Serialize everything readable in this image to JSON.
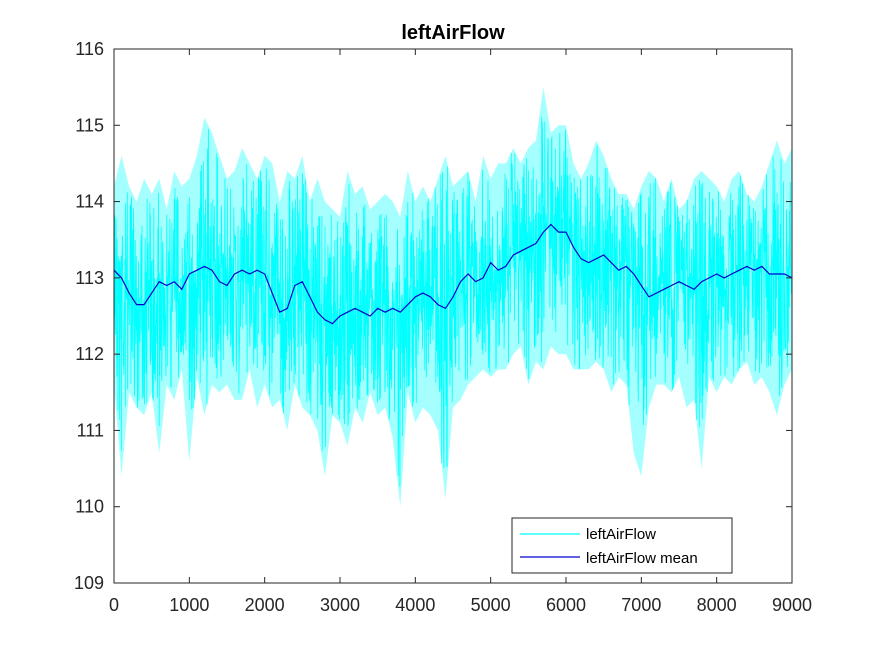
{
  "chart_data": {
    "type": "line",
    "title": "leftAirFlow",
    "xlabel": "",
    "ylabel": "",
    "xlim": [
      0,
      9000
    ],
    "ylim": [
      109,
      116
    ],
    "x_ticks": [
      0,
      1000,
      2000,
      3000,
      4000,
      5000,
      6000,
      7000,
      8000,
      9000
    ],
    "x_tick_labels": [
      "0",
      "1000",
      "2000",
      "3000",
      "4000",
      "5000",
      "6000",
      "7000",
      "8000",
      "9000"
    ],
    "y_ticks": [
      109,
      110,
      111,
      112,
      113,
      114,
      115,
      116
    ],
    "y_tick_labels": [
      "109",
      "110",
      "111",
      "112",
      "113",
      "114",
      "115",
      "116"
    ],
    "grid": false,
    "legend_position": "bottom-right",
    "series": [
      {
        "name": "leftAirFlow",
        "color": "#00FFFF",
        "x": [
          0,
          100,
          200,
          300,
          400,
          500,
          600,
          700,
          800,
          900,
          1000,
          1100,
          1200,
          1300,
          1400,
          1500,
          1600,
          1700,
          1800,
          1900,
          2000,
          2100,
          2200,
          2300,
          2400,
          2500,
          2600,
          2700,
          2800,
          2900,
          3000,
          3100,
          3200,
          3300,
          3400,
          3500,
          3600,
          3700,
          3800,
          3900,
          4000,
          4100,
          4200,
          4300,
          4400,
          4500,
          4600,
          4700,
          4800,
          4900,
          5000,
          5100,
          5200,
          5300,
          5400,
          5500,
          5600,
          5700,
          5800,
          5900,
          6000,
          6100,
          6200,
          6300,
          6400,
          6500,
          6600,
          6700,
          6800,
          6900,
          7000,
          7100,
          7200,
          7300,
          7400,
          7500,
          7600,
          7700,
          7800,
          7900,
          8000,
          8100,
          8200,
          8300,
          8400,
          8500,
          8600,
          8700,
          8800,
          8900,
          9000
        ],
        "y_min": [
          111.6,
          110.4,
          111.5,
          111.3,
          111.2,
          111.5,
          110.7,
          111.6,
          111.4,
          111.8,
          110.6,
          111.7,
          111.2,
          111.6,
          111.5,
          111.6,
          111.4,
          111.4,
          111.8,
          111.3,
          111.6,
          111.3,
          111.4,
          111.0,
          111.6,
          111.3,
          111.2,
          111.0,
          110.4,
          111.2,
          111.1,
          110.8,
          111.3,
          111.1,
          111.5,
          111.2,
          111.3,
          110.9,
          110.0,
          111.5,
          111.1,
          111.3,
          111.2,
          111.0,
          110.1,
          111.3,
          111.4,
          111.6,
          111.7,
          111.8,
          111.7,
          111.8,
          111.8,
          112.0,
          112.1,
          111.6,
          111.9,
          111.8,
          112.1,
          112.0,
          112.0,
          111.8,
          111.8,
          111.8,
          111.9,
          111.8,
          111.5,
          111.7,
          111.6,
          110.7,
          110.4,
          111.3,
          111.6,
          111.6,
          111.5,
          111.7,
          111.3,
          111.4,
          110.5,
          111.7,
          111.5,
          111.7,
          111.6,
          111.8,
          111.9,
          111.6,
          111.7,
          111.5,
          111.2,
          111.6,
          111.8
        ],
        "y_max": [
          114.2,
          114.6,
          114.2,
          114.0,
          114.3,
          114.1,
          114.3,
          113.9,
          114.4,
          114.2,
          114.3,
          114.6,
          115.1,
          114.9,
          114.6,
          114.3,
          114.4,
          114.7,
          114.5,
          114.3,
          114.6,
          114.5,
          114.0,
          114.4,
          114.3,
          114.6,
          114.0,
          114.3,
          114.0,
          113.9,
          113.8,
          114.4,
          114.1,
          114.2,
          113.9,
          114.0,
          114.1,
          114.0,
          113.8,
          114.4,
          114.0,
          114.2,
          114.0,
          114.3,
          114.6,
          114.2,
          114.3,
          114.4,
          114.0,
          114.6,
          114.3,
          114.5,
          114.5,
          114.7,
          114.5,
          114.7,
          114.8,
          115.5,
          114.9,
          115.0,
          115.0,
          114.5,
          114.3,
          114.5,
          114.8,
          114.6,
          114.3,
          114.1,
          114.1,
          113.9,
          114.2,
          114.4,
          114.3,
          114.0,
          114.3,
          113.9,
          114.0,
          114.3,
          114.4,
          114.3,
          114.2,
          114.0,
          114.3,
          114.4,
          114.1,
          114.0,
          114.2,
          114.5,
          114.8,
          114.5,
          114.7
        ]
      },
      {
        "name": "leftAirFlow mean",
        "color": "#0000CD",
        "x": [
          0,
          100,
          200,
          300,
          400,
          500,
          600,
          700,
          800,
          900,
          1000,
          1100,
          1200,
          1300,
          1400,
          1500,
          1600,
          1700,
          1800,
          1900,
          2000,
          2100,
          2200,
          2300,
          2400,
          2500,
          2600,
          2700,
          2800,
          2900,
          3000,
          3100,
          3200,
          3300,
          3400,
          3500,
          3600,
          3700,
          3800,
          3900,
          4000,
          4100,
          4200,
          4300,
          4400,
          4500,
          4600,
          4700,
          4800,
          4900,
          5000,
          5100,
          5200,
          5300,
          5400,
          5500,
          5600,
          5700,
          5800,
          5900,
          6000,
          6100,
          6200,
          6300,
          6400,
          6500,
          6600,
          6700,
          6800,
          6900,
          7000,
          7100,
          7200,
          7300,
          7400,
          7500,
          7600,
          7700,
          7800,
          7900,
          8000,
          8100,
          8200,
          8300,
          8400,
          8500,
          8600,
          8700,
          8800,
          8900,
          9000
        ],
        "y": [
          113.1,
          113.0,
          112.8,
          112.65,
          112.65,
          112.8,
          112.95,
          112.9,
          112.95,
          112.85,
          113.05,
          113.1,
          113.15,
          113.1,
          112.95,
          112.9,
          113.05,
          113.1,
          113.05,
          113.1,
          113.05,
          112.8,
          112.55,
          112.6,
          112.9,
          112.95,
          112.75,
          112.55,
          112.45,
          112.4,
          112.5,
          112.55,
          112.6,
          112.55,
          112.5,
          112.6,
          112.55,
          112.6,
          112.55,
          112.65,
          112.75,
          112.8,
          112.75,
          112.65,
          112.6,
          112.75,
          112.95,
          113.05,
          112.95,
          113.0,
          113.2,
          113.1,
          113.15,
          113.3,
          113.35,
          113.4,
          113.45,
          113.6,
          113.7,
          113.6,
          113.6,
          113.4,
          113.25,
          113.2,
          113.25,
          113.3,
          113.2,
          113.1,
          113.15,
          113.05,
          112.9,
          112.75,
          112.8,
          112.85,
          112.9,
          112.95,
          112.9,
          112.85,
          112.95,
          113.0,
          113.05,
          113.0,
          113.05,
          113.1,
          113.15,
          113.1,
          113.15,
          113.05,
          113.05,
          113.05,
          113.0
        ]
      }
    ]
  }
}
